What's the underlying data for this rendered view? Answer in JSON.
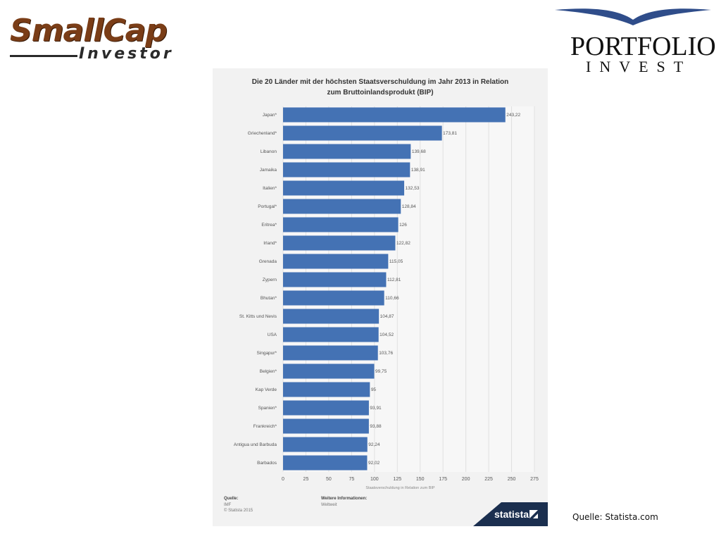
{
  "logos": {
    "smallcap_main": "SmallCap",
    "smallcap_sub": "Investor",
    "portfolio_main": "PORTFOLIO",
    "portfolio_sub": "INVEST"
  },
  "chart_data": {
    "type": "bar",
    "orientation": "horizontal",
    "title_line1": "Die 20 Länder mit der höchsten Staatsverschuldung im Jahr 2013 in Relation",
    "title_line2": "zum Bruttoinlandsprodukt (BIP)",
    "categories": [
      "Japan*",
      "Griechenland*",
      "Libanon",
      "Jamaika",
      "Italien*",
      "Portugal*",
      "Eritrea*",
      "Irland*",
      "Grenada",
      "Zypern",
      "Bhutan*",
      "St. Kitts und Nevis",
      "USA",
      "Singapur*",
      "Belgien*",
      "Kap Verde",
      "Spanien*",
      "Frankreich*",
      "Antigua und Barbuda",
      "Barbados"
    ],
    "values": [
      243.22,
      173.81,
      139.68,
      138.91,
      132.53,
      128.84,
      126,
      122.82,
      115.05,
      112.81,
      110.66,
      104.87,
      104.52,
      103.76,
      99.75,
      95,
      93.91,
      93.88,
      92.24,
      92.02
    ],
    "value_labels": [
      "243,22",
      "173,81",
      "139,68",
      "138,91",
      "132,53",
      "128,84",
      "126",
      "122,82",
      "115,05",
      "112,81",
      "110,66",
      "104,87",
      "104,52",
      "103,76",
      "99,75",
      "95",
      "93,91",
      "93,88",
      "92,24",
      "92,02"
    ],
    "xlabel": "Staatsverschuldung in Relation zum BIP",
    "xlim": [
      0,
      275
    ],
    "xticks": [
      0,
      25,
      50,
      75,
      100,
      125,
      150,
      175,
      200,
      225,
      250,
      275
    ],
    "grid": true,
    "bar_color": "#4472b4"
  },
  "footer": {
    "source_label": "Quelle:",
    "source": "IMF",
    "copyright": "© Statista 2015",
    "info_label": "Weitere Informationen:",
    "info": "Weltweit",
    "brand": "statista"
  },
  "source_note": "Quelle: Statista.com"
}
